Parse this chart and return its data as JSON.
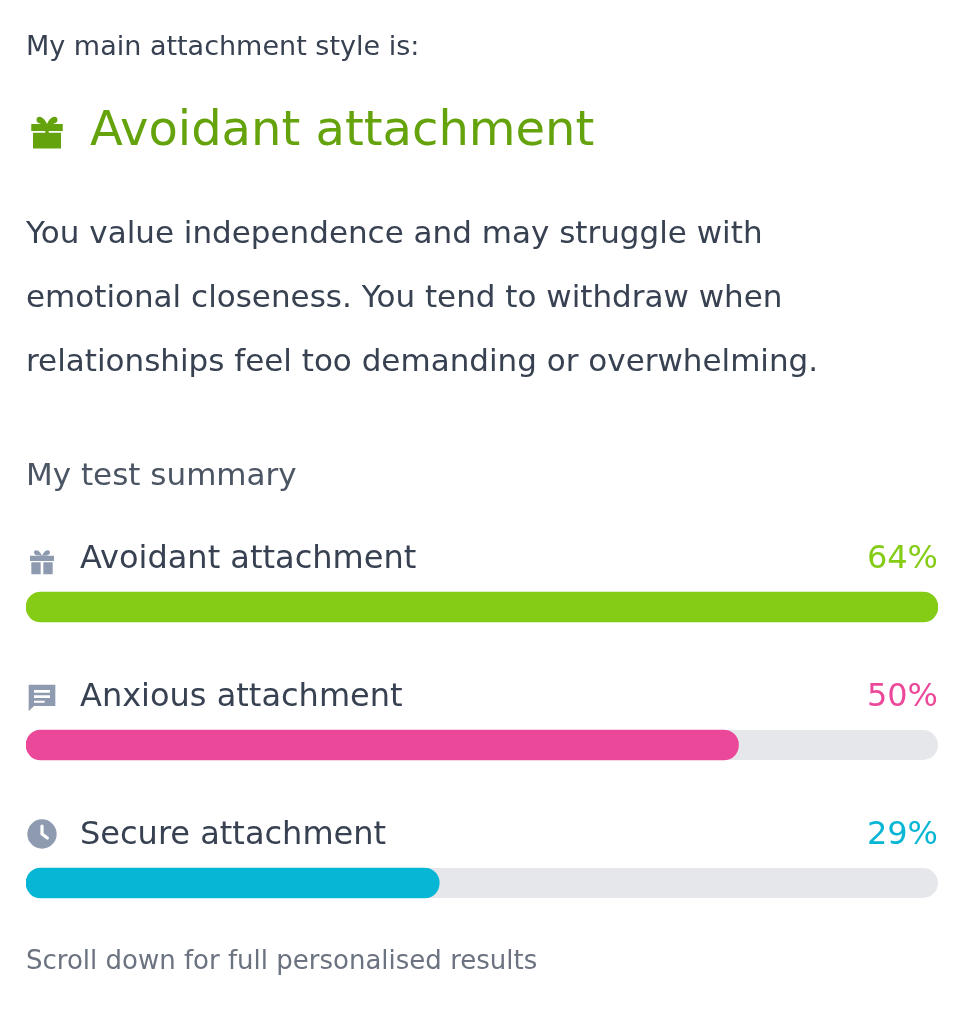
{
  "chart_data": {
    "type": "bar",
    "orientation": "horizontal",
    "subtitle": "My main attachment style is:",
    "title": "Avoidant attachment",
    "annotations": [
      "You value independence and may struggle with emotional closeness. You tend to withdraw when relationships feel too demanding or overwhelming.",
      "My test summary",
      "Scroll down for full personalised results"
    ],
    "categories": [
      "Avoidant attachment",
      "Anxious attachment",
      "Secure attachment"
    ],
    "values": [
      64,
      50,
      29
    ],
    "colors": [
      "#84cc16",
      "#ec4899",
      "#06b6d4"
    ],
    "value_labels": [
      "64%",
      "50%",
      "29%"
    ],
    "legend": false,
    "tick_labels": false
  }
}
